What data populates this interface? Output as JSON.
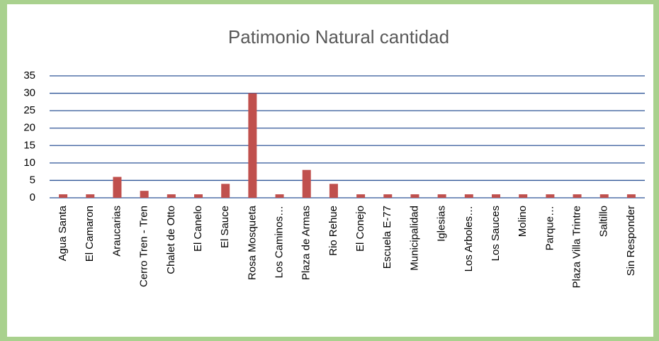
{
  "chart_data": {
    "type": "bar",
    "title": "Patimonio Natural cantidad",
    "categories": [
      "Agua Santa",
      "El Camaron",
      "Araucarias",
      "Cerro Tren - Tren",
      "Chalet de Otto",
      "El Canelo",
      "El Sauce",
      "Rosa Mosqueta",
      "Los Caminos…",
      "Plaza de Armas",
      "Rio Rehue",
      "El Conejo",
      "Escuela E-77",
      "Municipalidad",
      "Iglesias",
      "Los Arboles…",
      "Los Sauces",
      "Molino",
      "Parque…",
      "Plaza Villa Trintre",
      "Saltillo",
      "Sin Responder"
    ],
    "values": [
      1,
      1,
      6,
      2,
      1,
      1,
      4,
      30,
      1,
      8,
      4,
      1,
      1,
      1,
      1,
      1,
      1,
      1,
      1,
      1,
      1,
      1
    ],
    "color": "#c0504d",
    "ylim": [
      0,
      35
    ],
    "yticks": [
      0,
      5,
      10,
      15,
      20,
      25,
      30,
      35
    ],
    "grid": true,
    "grid_color": "#2f5597"
  }
}
